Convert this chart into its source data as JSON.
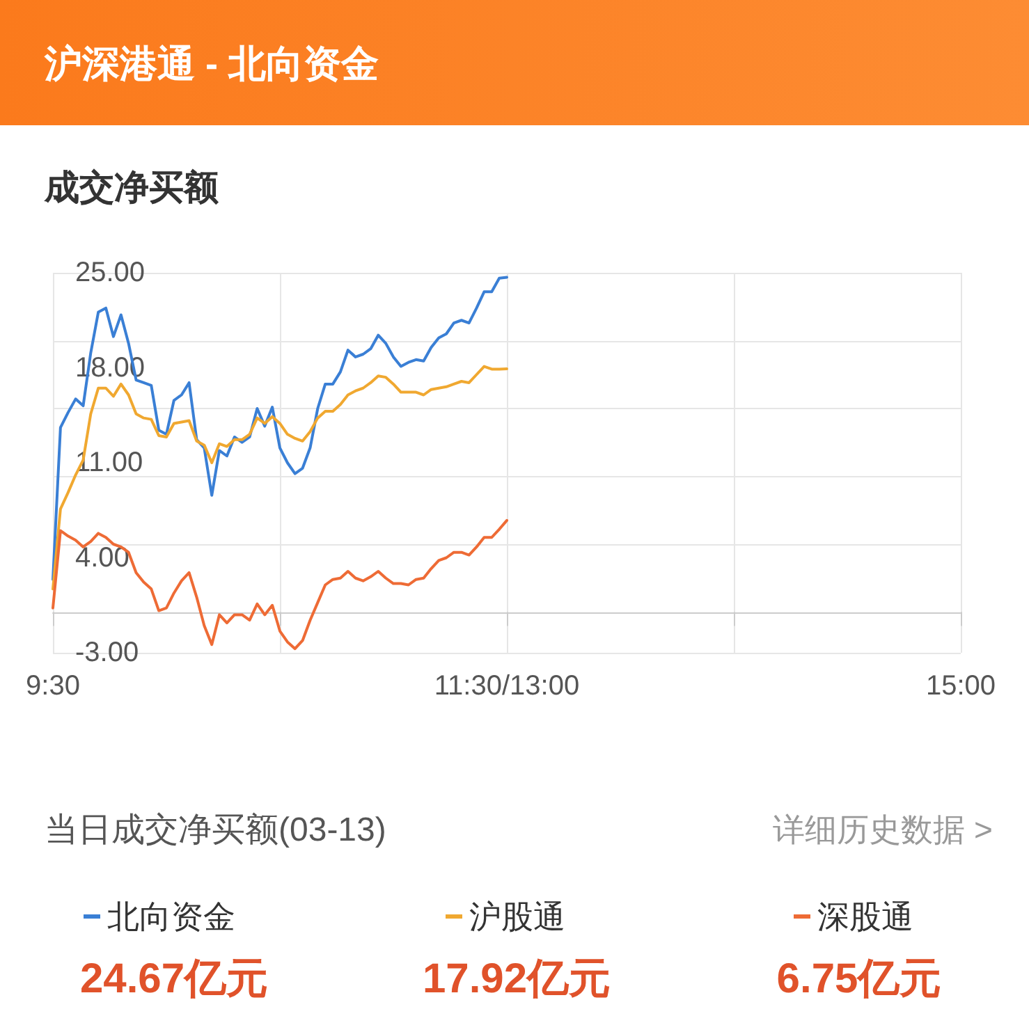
{
  "chart_data": {
    "type": "line",
    "title": "沪深港通 - 北向资金",
    "subtitle": "成交净买额",
    "categories": [
      "9:30",
      null,
      null,
      null,
      null,
      null,
      null,
      null,
      null,
      null,
      null,
      null,
      null,
      null,
      null,
      null,
      null,
      null,
      null,
      null,
      null,
      null,
      null,
      null,
      null,
      null,
      null,
      null,
      null,
      null,
      null,
      null,
      null,
      null,
      null,
      null,
      null,
      null,
      null,
      null,
      null,
      null,
      null,
      null,
      null,
      null,
      null,
      null,
      null,
      null,
      null,
      null,
      null,
      null,
      null,
      null,
      null,
      null,
      null,
      null,
      "11:30/13:00",
      null,
      null,
      null,
      null,
      null,
      null,
      null,
      null,
      null,
      null,
      null,
      null,
      null,
      null,
      null,
      null,
      null,
      null,
      null,
      null,
      null,
      null,
      null,
      null,
      null,
      null,
      null,
      null,
      null,
      null,
      null,
      null,
      null,
      null,
      null,
      null,
      null,
      null,
      null,
      null,
      null,
      null,
      null,
      null,
      null,
      null,
      null,
      null,
      null,
      null,
      null,
      null,
      null,
      null,
      null,
      null,
      null,
      null,
      null,
      "15:00"
    ],
    "ylim": [
      -3,
      25
    ],
    "yticks": [
      {
        "value": -3,
        "label": "-3.00"
      },
      {
        "value": 4,
        "label": "4.00"
      },
      {
        "value": 11,
        "label": "11.00"
      },
      {
        "value": 18,
        "label": "18.00"
      },
      {
        "value": 25,
        "label": "25.00"
      }
    ],
    "grid": true,
    "legend": "bottom",
    "series": [
      {
        "name": "北向资金",
        "color": "#3a7fd5",
        "values": [
          2.4,
          13.6,
          14.7,
          15.7,
          15.2,
          19.1,
          22.1,
          22.4,
          20.3,
          21.9,
          19.8,
          17.1,
          16.9,
          16.7,
          13.4,
          13.1,
          15.6,
          16.0,
          16.9,
          12.7,
          12.1,
          8.6,
          11.9,
          11.5,
          12.9,
          12.5,
          12.9,
          15.0,
          13.7,
          15.1,
          12.1,
          11.0,
          10.2,
          10.6,
          12.1,
          15.0,
          16.8,
          16.8,
          17.7,
          19.3,
          18.8,
          19.0,
          19.4,
          20.4,
          19.8,
          18.8,
          18.1,
          18.4,
          18.6,
          18.5,
          19.5,
          20.2,
          20.5,
          21.3,
          21.5,
          21.3,
          22.4,
          23.6,
          23.6,
          24.6,
          24.67,
          null,
          null,
          null,
          null,
          null,
          null,
          null,
          null,
          null,
          null,
          null,
          null,
          null,
          null,
          null,
          null,
          null,
          null,
          null,
          null,
          null,
          null,
          null,
          null,
          null,
          null,
          null,
          null,
          null,
          null,
          null,
          null,
          null,
          null,
          null,
          null,
          null,
          null,
          null,
          null,
          null,
          null,
          null,
          null,
          null,
          null,
          null,
          null,
          null,
          null,
          null,
          null,
          null,
          null,
          null,
          null,
          null,
          null,
          null,
          null
        ]
      },
      {
        "name": "沪股通",
        "color": "#f0a830",
        "values": [
          1.7,
          7.6,
          8.8,
          10.1,
          11.2,
          14.6,
          16.5,
          16.5,
          15.9,
          16.8,
          16.0,
          14.6,
          14.3,
          14.2,
          13.0,
          12.9,
          13.9,
          14.0,
          14.1,
          12.6,
          12.3,
          11.0,
          12.4,
          12.2,
          12.7,
          12.7,
          13.1,
          14.3,
          13.9,
          14.4,
          13.9,
          13.1,
          12.8,
          12.6,
          13.3,
          14.3,
          14.8,
          14.8,
          15.3,
          16.0,
          16.3,
          16.5,
          16.9,
          17.4,
          17.3,
          16.8,
          16.2,
          16.2,
          16.2,
          16.0,
          16.4,
          16.5,
          16.6,
          16.8,
          17.0,
          16.9,
          17.5,
          18.1,
          17.9,
          17.9,
          17.92,
          null,
          null,
          null,
          null,
          null,
          null,
          null,
          null,
          null,
          null,
          null,
          null,
          null,
          null,
          null,
          null,
          null,
          null,
          null,
          null,
          null,
          null,
          null,
          null,
          null,
          null,
          null,
          null,
          null,
          null,
          null,
          null,
          null,
          null,
          null,
          null,
          null,
          null,
          null,
          null,
          null,
          null,
          null,
          null,
          null,
          null,
          null,
          null,
          null,
          null,
          null,
          null,
          null,
          null,
          null,
          null,
          null,
          null,
          null,
          null
        ]
      },
      {
        "name": "深股通",
        "color": "#ee6b35",
        "values": [
          0.3,
          6.0,
          5.6,
          5.3,
          4.8,
          5.2,
          5.8,
          5.5,
          5.0,
          4.8,
          4.4,
          2.9,
          2.2,
          1.7,
          0.1,
          0.3,
          1.4,
          2.3,
          2.9,
          1.1,
          -1.0,
          -2.4,
          -0.2,
          -0.8,
          -0.2,
          -0.2,
          -0.6,
          0.6,
          -0.2,
          0.5,
          -1.4,
          -2.2,
          -2.7,
          -2.1,
          -0.6,
          0.7,
          2.0,
          2.4,
          2.5,
          3.0,
          2.5,
          2.3,
          2.6,
          3.0,
          2.5,
          2.1,
          2.1,
          2.0,
          2.4,
          2.5,
          3.2,
          3.8,
          4.0,
          4.4,
          4.4,
          4.2,
          4.8,
          5.5,
          5.5,
          6.1,
          6.75,
          null,
          null,
          null,
          null,
          null,
          null,
          null,
          null,
          null,
          null,
          null,
          null,
          null,
          null,
          null,
          null,
          null,
          null,
          null,
          null,
          null,
          null,
          null,
          null,
          null,
          null,
          null,
          null,
          null,
          null,
          null,
          null,
          null,
          null,
          null,
          null,
          null,
          null,
          null,
          null,
          null,
          null,
          null,
          null,
          null,
          null,
          null,
          null,
          null,
          null,
          null,
          null,
          null,
          null,
          null,
          null,
          null,
          null,
          null,
          null
        ]
      }
    ],
    "annotations": [
      "当日成交净买额(03-13)",
      "详细历史数据 >",
      "24.67亿元",
      "17.92亿元",
      "6.75亿元"
    ]
  }
}
